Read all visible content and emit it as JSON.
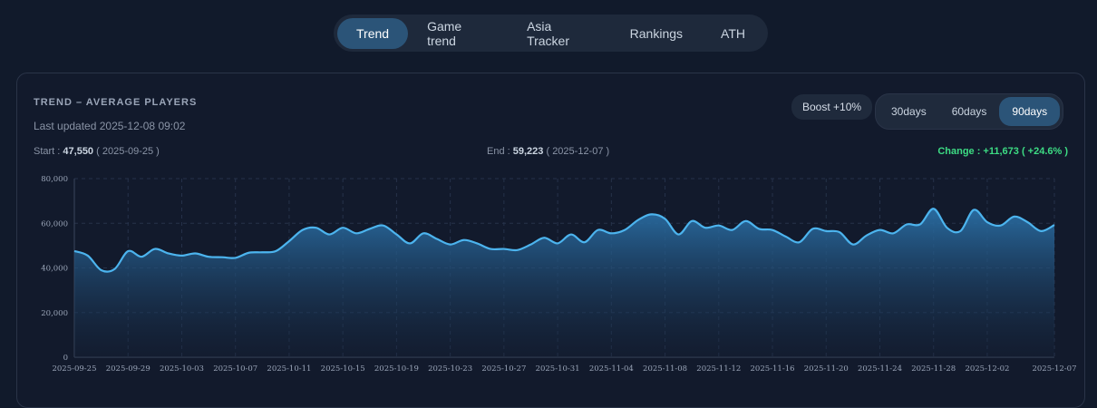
{
  "tabs": [
    "Trend",
    "Game trend",
    "Asia Tracker",
    "Rankings",
    "ATH"
  ],
  "card": {
    "heading": "TREND – AVERAGE PLAYERS",
    "updated": "Last updated 2025-12-08 09:02",
    "boost": "Boost +10%",
    "ranges": [
      "30days",
      "60days",
      "90days"
    ],
    "start_label": "Start :",
    "start_value": "47,550",
    "start_date": "( 2025-09-25 )",
    "end_label": "End :",
    "end_value": "59,223",
    "end_date": "( 2025-12-07 )",
    "change": "Change : +11,673 ( +24.6% )"
  },
  "chart_data": {
    "type": "area",
    "color": "#4cb4ee",
    "grid": true,
    "categories": [
      "2025-09-25",
      null,
      null,
      null,
      "2025-09-29",
      null,
      null,
      null,
      "2025-10-03",
      null,
      null,
      null,
      "2025-10-07",
      null,
      null,
      null,
      "2025-10-11",
      null,
      null,
      null,
      "2025-10-15",
      null,
      null,
      null,
      "2025-10-19",
      null,
      null,
      null,
      "2025-10-23",
      null,
      null,
      null,
      "2025-10-27",
      null,
      null,
      null,
      "2025-10-31",
      null,
      null,
      null,
      "2025-11-04",
      null,
      null,
      null,
      "2025-11-08",
      null,
      null,
      null,
      "2025-11-12",
      null,
      null,
      null,
      "2025-11-16",
      null,
      null,
      null,
      "2025-11-20",
      null,
      null,
      null,
      "2025-11-24",
      null,
      null,
      null,
      "2025-11-28",
      null,
      null,
      null,
      "2025-12-02",
      null,
      null,
      null,
      null,
      "2025-12-07"
    ],
    "values": [
      47550,
      45500,
      39000,
      39500,
      47500,
      45000,
      48500,
      46500,
      45500,
      46500,
      45000,
      44800,
      44500,
      46800,
      47000,
      47500,
      52000,
      57000,
      58000,
      55000,
      58000,
      55500,
      57500,
      59000,
      55000,
      51000,
      55500,
      53000,
      50500,
      52500,
      51000,
      48500,
      48500,
      48000,
      50500,
      53500,
      51000,
      55000,
      51500,
      57000,
      55500,
      57000,
      61500,
      64000,
      62000,
      55000,
      61000,
      58000,
      59000,
      57000,
      61000,
      57500,
      57000,
      54000,
      51500,
      57500,
      56500,
      56000,
      50500,
      54500,
      57000,
      55500,
      59500,
      59500,
      66500,
      58000,
      56500,
      66000,
      60500,
      59000,
      63000,
      60500,
      56500,
      59223
    ],
    "ylim": [
      0,
      80000
    ],
    "yticks": [
      0,
      {
        "value": 20000,
        "label": "20,000"
      },
      {
        "value": 40000,
        "label": "40,000"
      },
      {
        "value": 60000,
        "label": "60,000"
      },
      {
        "value": 80000,
        "label": "80,000"
      }
    ]
  }
}
